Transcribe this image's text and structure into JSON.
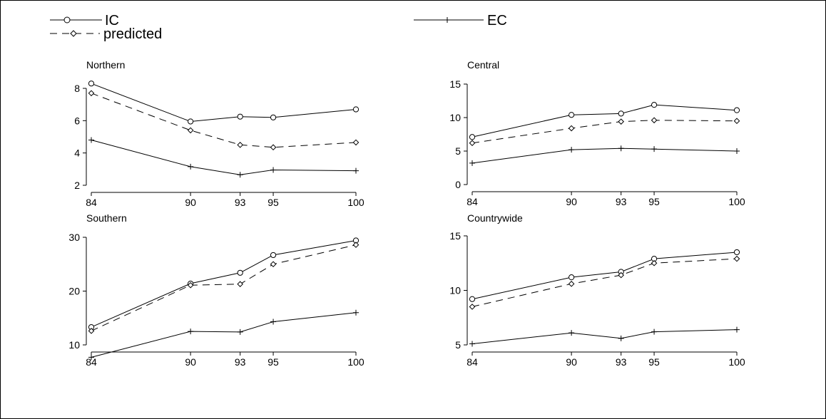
{
  "legend": [
    {
      "label": "IC",
      "style": "solid",
      "marker": "circle"
    },
    {
      "label": "predicted",
      "style": "dashed",
      "marker": "diamond"
    },
    {
      "label": "EC",
      "style": "solid",
      "marker": "plus"
    }
  ],
  "chart_data": [
    {
      "type": "line",
      "title": "Northern",
      "x": [
        84,
        90,
        93,
        95,
        100
      ],
      "xticks": [
        "84",
        "90",
        "93",
        "95",
        "100"
      ],
      "ylim": [
        2,
        8
      ],
      "yticks": [
        2,
        4,
        6,
        8
      ],
      "series": [
        {
          "name": "IC",
          "values": [
            8.3,
            5.95,
            6.25,
            6.2,
            6.7
          ]
        },
        {
          "name": "predicted",
          "values": [
            7.7,
            5.4,
            4.5,
            4.35,
            4.65
          ]
        },
        {
          "name": "EC",
          "values": [
            4.8,
            3.15,
            2.65,
            2.95,
            2.9
          ]
        }
      ]
    },
    {
      "type": "line",
      "title": "Central",
      "x": [
        84,
        90,
        93,
        95,
        100
      ],
      "xticks": [
        "84",
        "90",
        "93",
        "95",
        "100"
      ],
      "ylim": [
        0,
        15
      ],
      "yticks": [
        0,
        5,
        10,
        15
      ],
      "series": [
        {
          "name": "IC",
          "values": [
            7.1,
            10.4,
            10.6,
            11.9,
            11.1
          ]
        },
        {
          "name": "predicted",
          "values": [
            6.2,
            8.4,
            9.4,
            9.6,
            9.5
          ]
        },
        {
          "name": "EC",
          "values": [
            3.2,
            5.2,
            5.4,
            5.3,
            5.0
          ]
        }
      ]
    },
    {
      "type": "line",
      "title": "Southern",
      "x": [
        84,
        90,
        93,
        95,
        100
      ],
      "xticks": [
        "84",
        "90",
        "93",
        "95",
        "100"
      ],
      "ylim": [
        10,
        30
      ],
      "yticks": [
        10,
        20,
        30
      ],
      "series": [
        {
          "name": "IC",
          "values": [
            13.3,
            21.4,
            23.4,
            26.7,
            29.4
          ]
        },
        {
          "name": "predicted",
          "values": [
            12.6,
            21.1,
            21.3,
            25.0,
            28.6
          ]
        },
        {
          "name": "EC",
          "values": [
            7.7,
            12.5,
            12.4,
            14.3,
            16.0
          ]
        }
      ]
    },
    {
      "type": "line",
      "title": "Countrywide",
      "x": [
        84,
        90,
        93,
        95,
        100
      ],
      "xticks": [
        "84",
        "90",
        "93",
        "95",
        "100"
      ],
      "ylim": [
        5,
        15
      ],
      "yticks": [
        5,
        10,
        15
      ],
      "series": [
        {
          "name": "IC",
          "values": [
            9.2,
            11.2,
            11.7,
            12.9,
            13.5
          ]
        },
        {
          "name": "predicted",
          "values": [
            8.5,
            10.6,
            11.4,
            12.5,
            12.9
          ]
        },
        {
          "name": "EC",
          "values": [
            5.1,
            6.1,
            5.6,
            6.2,
            6.4
          ]
        }
      ]
    }
  ]
}
